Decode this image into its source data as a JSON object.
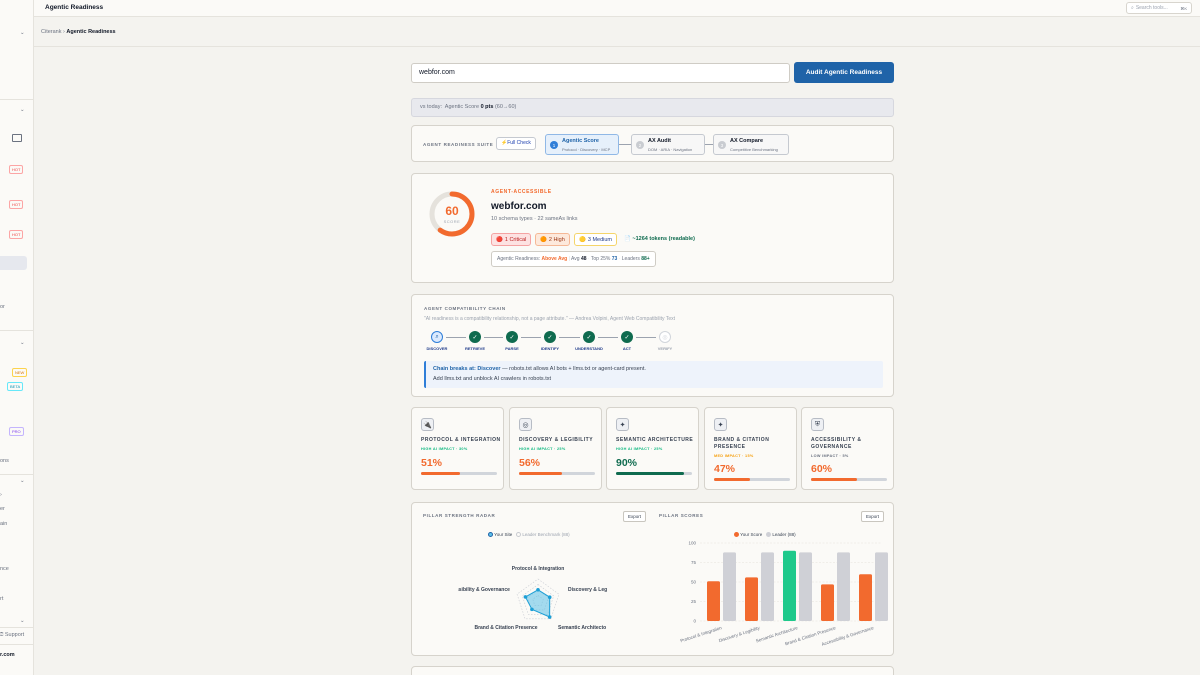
{
  "app": {
    "title": "Agentic Readiness",
    "search_placeholder": "Search tools...",
    "search_kbd": "⌘K"
  },
  "breadcrumb": {
    "root": "Citerank",
    "sep": "›",
    "current": "Agentic Readiness"
  },
  "sidebar": {
    "badges": [
      "HOT",
      "HOT",
      "HOT",
      "NEW",
      "BETA",
      "PRO"
    ],
    "fragments": [
      "or",
      "ons",
      "er",
      "ain",
      "nce",
      "rt"
    ],
    "support_label": "Support",
    "domain_fragment": "r.com"
  },
  "audit": {
    "url_value": "webfor.com",
    "button_label": "Audit Agentic Readiness"
  },
  "vs_today": {
    "label": "vs today:",
    "text": "Agentic Score",
    "value": "0 pts",
    "range": "(60→60)"
  },
  "suite": {
    "label": "AGENT READINESS SUITE",
    "full_check": "Full Check",
    "steps": [
      {
        "num": "1",
        "title": "Agentic Score",
        "sub": "Protocol · Discovery · MCP"
      },
      {
        "num": "2",
        "title": "AX Audit",
        "sub": "DOM · ARIA · Navigation"
      },
      {
        "num": "3",
        "title": "AX Compare",
        "sub": "Competitive Benchmarking"
      }
    ]
  },
  "score": {
    "value": 60,
    "max": 100,
    "label": "SCORE",
    "status": "AGENT-ACCESSIBLE",
    "domain": "webfor.com",
    "meta": "10 schema types · 22 sameAs links",
    "issues": {
      "critical": "1 Critical",
      "high": "2 High",
      "medium": "3 Medium",
      "tokens": "~1264 tokens (readable)"
    },
    "benchmark": {
      "label": "Agentic Readiness:",
      "level": "Above Avg",
      "avg_label": "Avg",
      "avg": "48",
      "top_label": "Top 25%",
      "top": "73",
      "leaders_label": "Leaders",
      "leaders": "88+"
    }
  },
  "chain": {
    "title": "AGENT COMPATIBILITY CHAIN",
    "quote": "\"AI readiness is a compatibility relationship, not a page attribute.\" — Andrea Volpini, Agent Web Compatibility Text",
    "steps": [
      {
        "label": "DISCOVER",
        "state": "current"
      },
      {
        "label": "RETRIEVE",
        "state": "done"
      },
      {
        "label": "PARSE",
        "state": "done"
      },
      {
        "label": "IDENTIFY",
        "state": "done"
      },
      {
        "label": "UNDERSTAND",
        "state": "done"
      },
      {
        "label": "ACT",
        "state": "done"
      },
      {
        "label": "VERIFY",
        "state": "pending"
      }
    ],
    "alert_title": "Chain breaks at: Discover",
    "alert_body": " — robots.txt allows AI bots + llms.txt or agent-card present.",
    "alert_fix": "Add llms.txt and unblock AI crawlers in robots.txt"
  },
  "pillars": [
    {
      "name": "PROTOCOL & INTEGRATION",
      "impact": "HIGH AI IMPACT · 30%",
      "impact_color": "#10b981",
      "pct": "51%",
      "value": 51,
      "color": "#f26a2e",
      "icon": "plug-icon",
      "glyph": "🔌"
    },
    {
      "name": "DISCOVERY & LEGIBILITY",
      "impact": "HIGH AI IMPACT · 25%",
      "impact_color": "#10b981",
      "pct": "56%",
      "value": 56,
      "color": "#f26a2e",
      "icon": "discovery-icon",
      "glyph": "◎"
    },
    {
      "name": "SEMANTIC ARCHITECTURE",
      "impact": "HIGH AI IMPACT · 25%",
      "impact_color": "#10b981",
      "pct": "90%",
      "value": 90,
      "color": "#0f6b4f",
      "icon": "sparkle-icon",
      "glyph": "✦"
    },
    {
      "name": "BRAND & CITATION PRESENCE",
      "impact": "MED IMPACT · 15%",
      "impact_color": "#f59e0b",
      "pct": "47%",
      "value": 47,
      "color": "#f26a2e",
      "icon": "star-icon",
      "glyph": "✦"
    },
    {
      "name": "ACCESSIBILITY & GOVERNANCE",
      "impact": "LOW IMPACT · 5%",
      "impact_color": "#6b7280",
      "pct": "60%",
      "value": 60,
      "color": "#f26a2e",
      "icon": "shield-icon",
      "glyph": "⛨"
    }
  ],
  "radar": {
    "title": "PILLAR STRENGTH RADAR",
    "export": "Export",
    "legend_you": "Your Site",
    "legend_leader": "Leader Benchmark (88)",
    "axis_labels": [
      "Protocol & Integration",
      "Discovery & Leg",
      "Semantic Architecto",
      "Brand & Citation Presence",
      "ssibility & Governance"
    ]
  },
  "chart_data": {
    "type": "bar",
    "title": "PILLAR SCORES",
    "categories": [
      "Protocol & Integration",
      "Discovery & Legibility",
      "Semantic Architecture",
      "Brand & Citation Presence",
      "Accessibility & Governance"
    ],
    "series": [
      {
        "name": "Your Score",
        "values": [
          51,
          56,
          90,
          47,
          60
        ]
      },
      {
        "name": "Leader (88)",
        "values": [
          88,
          88,
          88,
          88,
          88
        ]
      }
    ],
    "ylim": [
      0,
      100
    ],
    "yticks": [
      "0",
      "25",
      "50",
      "75",
      "100"
    ],
    "export": "Export",
    "colors": {
      "your": "#f26a2e",
      "top": "#1ec98b",
      "leader": "#cfd0d6"
    }
  }
}
